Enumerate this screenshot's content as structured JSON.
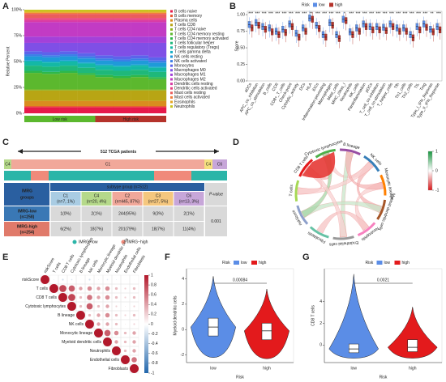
{
  "panel_labels": [
    "A",
    "B",
    "C",
    "D",
    "E",
    "F",
    "G"
  ],
  "chart_data": [
    {
      "type": "stacked_bar",
      "ylabel": "Relative Percent",
      "ylim": [
        0,
        100
      ],
      "yticks": [
        {
          "value": 0,
          "label": "0%"
        },
        {
          "value": 25,
          "label": "25%"
        },
        {
          "value": 50,
          "label": "50%"
        },
        {
          "value": 75,
          "label": "75%"
        },
        {
          "value": 100,
          "label": "100%"
        }
      ],
      "groups": [
        "Low risk",
        "High risk"
      ],
      "group_colors": [
        "#5cb82e",
        "#b5332b"
      ],
      "series": [
        {
          "name": "B cells naive",
          "color": "#e6194b",
          "values": [
            6,
            6,
            6,
            6,
            6,
            6,
            6,
            6
          ]
        },
        {
          "name": "B cells memory",
          "color": "#e8542f",
          "values": [
            1,
            1,
            1,
            1,
            1,
            1,
            1,
            1
          ]
        },
        {
          "name": "Plasma cells",
          "color": "#d98c1f",
          "values": [
            5,
            5,
            5,
            5,
            5,
            5,
            5,
            5
          ]
        },
        {
          "name": "T cells CD8",
          "color": "#b8a514",
          "values": [
            10,
            10,
            10,
            10,
            10,
            10,
            10,
            10
          ]
        },
        {
          "name": "T cells CD4 naive",
          "color": "#8fb31c",
          "values": [
            1,
            1,
            1,
            1,
            1,
            1,
            1,
            1
          ]
        },
        {
          "name": "T cells CD4 memory resting",
          "color": "#5cb82e",
          "values": [
            16,
            15,
            16,
            14,
            12,
            11,
            12,
            10
          ]
        },
        {
          "name": "T cells CD4 memory activated",
          "color": "#2eb84a",
          "values": [
            2,
            2,
            2,
            2,
            2,
            2,
            2,
            2
          ]
        },
        {
          "name": "T cells follicular helper",
          "color": "#1fb87a",
          "values": [
            5,
            5,
            5,
            5,
            5,
            5,
            5,
            5
          ]
        },
        {
          "name": "T cells regulatory (Tregs)",
          "color": "#14b8a5",
          "values": [
            4,
            4,
            4,
            4,
            4,
            4,
            4,
            4
          ]
        },
        {
          "name": "T cells gamma delta",
          "color": "#14aec4",
          "values": [
            1,
            1,
            1,
            1,
            1,
            1,
            1,
            1
          ]
        },
        {
          "name": "NK cells resting",
          "color": "#1f9ad9",
          "values": [
            4,
            4,
            4,
            4,
            4,
            4,
            4,
            4
          ]
        },
        {
          "name": "NK cells activated",
          "color": "#3b7fe6",
          "values": [
            2,
            2,
            2,
            2,
            2,
            2,
            2,
            2
          ]
        },
        {
          "name": "Monocytes",
          "color": "#5c63eb",
          "values": [
            3,
            3,
            3,
            3,
            3,
            3,
            3,
            3
          ]
        },
        {
          "name": "Macrophages M0",
          "color": "#7f4fe6",
          "values": [
            8,
            9,
            8,
            10,
            12,
            13,
            12,
            14
          ]
        },
        {
          "name": "Macrophages M1",
          "color": "#a341d9",
          "values": [
            6,
            6,
            6,
            6,
            6,
            6,
            6,
            6
          ]
        },
        {
          "name": "Macrophages M2",
          "color": "#c23bc4",
          "values": [
            14,
            14,
            14,
            14,
            14,
            14,
            14,
            14
          ]
        },
        {
          "name": "Dendritic cells resting",
          "color": "#d93ba5",
          "values": [
            2,
            2,
            2,
            2,
            2,
            2,
            2,
            2
          ]
        },
        {
          "name": "Dendritic cells activated",
          "color": "#e6417f",
          "values": [
            2,
            2,
            2,
            2,
            2,
            2,
            2,
            2
          ]
        },
        {
          "name": "Mast cells resting",
          "color": "#eb5c5c",
          "values": [
            4,
            4,
            4,
            4,
            4,
            4,
            4,
            4
          ]
        },
        {
          "name": "Mast cells activated",
          "color": "#f07c3b",
          "values": [
            1,
            1,
            1,
            1,
            1,
            1,
            1,
            1
          ]
        },
        {
          "name": "Eosinophils",
          "color": "#e6a31f",
          "values": [
            1,
            1,
            1,
            1,
            1,
            1,
            1,
            1
          ]
        },
        {
          "name": "Neutrophils",
          "color": "#c9c41f",
          "values": [
            2,
            2,
            2,
            2,
            2,
            2,
            2,
            2
          ]
        }
      ]
    },
    {
      "type": "box",
      "ylabel": "Score",
      "legend_title": "Risk",
      "ylim": [
        0,
        1.05
      ],
      "yticks": [
        {
          "value": 0,
          "label": "0.00"
        },
        {
          "value": 0.25,
          "label": "0.25"
        },
        {
          "value": 0.5,
          "label": "0.50"
        },
        {
          "value": 0.75,
          "label": "0.75"
        },
        {
          "value": 1,
          "label": "1.00"
        }
      ],
      "categories": [
        "aDCs",
        "APC_co_inhibition",
        "APC_co_stimulation",
        "B_cells",
        "CCR",
        "CD8+_T_cells",
        "Check-point",
        "Cytolytic_activity",
        "DCs",
        "HLA",
        "iDCs",
        "Inflammation-promoting",
        "Macrophages",
        "Mast_cells",
        "MHC_class_I",
        "Neutrophils",
        "NK_cells",
        "Parainflammation",
        "pDCs",
        "T_cell_co-inhibition",
        "T_cell_co-stimulation",
        "T_helper_cells",
        "Tfh",
        "Th1_cells",
        "Th2_cells",
        "TIL",
        "Treg",
        "Type_I_IFN_Reponse",
        "Type_II_IFN_Reponse"
      ],
      "significance": [
        "***",
        "***",
        "***",
        "***",
        "***",
        "***",
        "***",
        "***",
        "***",
        "**",
        "***",
        "***",
        "***",
        "***",
        "*",
        "***",
        "***",
        "***",
        "***",
        "***",
        "***",
        "***",
        "***",
        "***",
        "***",
        "***",
        "***",
        "**",
        "***"
      ],
      "series": [
        {
          "name": "low",
          "color": "#5b8de6",
          "values": [
            0.85,
            0.88,
            0.82,
            0.8,
            0.75,
            0.78,
            0.86,
            0.72,
            0.8,
            0.95,
            0.84,
            0.7,
            0.88,
            0.7,
            0.93,
            0.74,
            0.8,
            0.86,
            0.82,
            0.82,
            0.81,
            0.86,
            0.8,
            0.8,
            0.7,
            0.82,
            0.86,
            0.78,
            0.82
          ]
        },
        {
          "name": "high",
          "color": "#b5332b",
          "values": [
            0.8,
            0.84,
            0.78,
            0.74,
            0.7,
            0.73,
            0.82,
            0.66,
            0.75,
            0.93,
            0.79,
            0.66,
            0.84,
            0.64,
            0.91,
            0.7,
            0.75,
            0.82,
            0.77,
            0.77,
            0.76,
            0.82,
            0.75,
            0.75,
            0.65,
            0.77,
            0.81,
            0.74,
            0.77
          ]
        }
      ]
    },
    {
      "type": "chord",
      "labels": [
        "CD8 T cells",
        "Cytotoxic lymphocytes",
        "B lineage",
        "NK cells",
        "Monocytic lineage",
        "Myeloid dendritic cells",
        "Neutrophils",
        "Endothelial cells",
        "Fibroblasts",
        "riskScore",
        "T cells"
      ],
      "colors": [
        "#e41a1c",
        "#4daf4a",
        "#984ea3",
        "#377eb8",
        "#ff7f00",
        "#a65628",
        "#f781bf",
        "#999999",
        "#66c2a5",
        "#8da0cb",
        "#a6d854"
      ],
      "ylim": [
        -1,
        1
      ],
      "yticks": [
        1,
        0,
        -1
      ]
    },
    {
      "type": "corrplot",
      "labels": [
        "riskScore",
        "T cells",
        "CD8 T cells",
        "Cytotoxic lymphocytes",
        "B lineage",
        "NK cells",
        "Monocytic lineage",
        "Myeloid dendritic cells",
        "Neutrophils",
        "Endothelial cells",
        "Fibroblasts"
      ],
      "matrix": [
        [
          1,
          -0.1,
          -0.2,
          -0.15,
          -0.05,
          -0.2,
          -0.1,
          -0.15,
          -0.1,
          -0.05,
          0.05
        ],
        [
          1,
          0.8,
          0.7,
          0.4,
          0.5,
          0.4,
          0.5,
          0.3,
          0.2,
          0.3
        ],
        [
          1,
          0.8,
          0.3,
          0.6,
          0.4,
          0.5,
          0.3,
          0.2,
          0.3
        ],
        [
          1,
          0.3,
          0.7,
          0.3,
          0.4,
          0.2,
          0.1,
          0.2
        ],
        [
          1,
          0.3,
          0.4,
          0.5,
          0.3,
          0.2,
          0.3
        ],
        [
          1,
          0.4,
          0.4,
          0.3,
          0.1,
          0.2
        ],
        [
          1,
          0.7,
          0.5,
          0.3,
          0.4
        ],
        [
          1,
          0.4,
          0.3,
          0.4
        ],
        [
          1,
          0.3,
          0.4
        ],
        [
          1,
          0.6
        ],
        [
          1
        ]
      ],
      "ylim": [
        -1,
        1
      ],
      "yticks": [
        1,
        0.8,
        0.6,
        0.4,
        0.2,
        0,
        -0.2,
        -0.4,
        -0.6,
        -0.8,
        -1
      ]
    },
    {
      "type": "violin",
      "ylabel": "Myeloid dendritic cells",
      "xlabel": "Risk",
      "legend_title": "Risk",
      "pvalue": "0.00084",
      "ylim": [
        -2.6,
        4.8
      ],
      "yticks": [
        -2,
        0,
        2,
        4
      ],
      "series": [
        {
          "name": "low",
          "color": "#5b8de6",
          "min": -2.2,
          "q1": -0.5,
          "median": 0.2,
          "q3": 0.9,
          "max": 4.2
        },
        {
          "name": "high",
          "color": "#e31a1c",
          "min": -2.3,
          "q1": -0.8,
          "median": -0.1,
          "q3": 0.5,
          "max": 3.2
        }
      ]
    },
    {
      "type": "violin",
      "ylabel": "CD8 T cells",
      "xlabel": "Risk",
      "legend_title": "Risk",
      "pvalue": "0.0021",
      "ylim": [
        -1.6,
        7
      ],
      "yticks": [
        0,
        2,
        4
      ],
      "series": [
        {
          "name": "low",
          "color": "#5b8de6",
          "min": -1.2,
          "q1": -0.7,
          "median": -0.35,
          "q3": 0.1,
          "max": 6.5
        },
        {
          "name": "high",
          "color": "#e31a1c",
          "min": -1.2,
          "q1": -0.6,
          "median": -0.2,
          "q3": 0.5,
          "max": 3.5
        }
      ]
    }
  ],
  "table": {
    "title": "512 TCGA patients",
    "strip_labels": [
      "C4",
      "C1",
      "C4",
      "C6"
    ],
    "group_header": [
      "IMRG",
      "groups"
    ],
    "subtype_header": "subtype group (n=512)",
    "p_header": "P-value",
    "subtypes": [
      {
        "name": "C1",
        "n": "(n=7, 1%)",
        "color": "#a9cce3"
      },
      {
        "name": "C4",
        "n": "(n=20, 4%)",
        "color": "#b5d98a"
      },
      {
        "name": "C2",
        "n": "(n=445, 87%)",
        "color": "#f1a89a"
      },
      {
        "name": "C3",
        "n": "(n=27, 5%)",
        "color": "#f5c77e"
      },
      {
        "name": "C6",
        "n": "(n=13, 3%)",
        "color": "#c7a6d9"
      }
    ],
    "rows": [
      {
        "label": "IMRG-low",
        "n": "(n=258)",
        "color": "#3a78b5",
        "cells": [
          "1(0%)",
          "2(1%)",
          "244(95%)",
          "9(3%)",
          "2(1%)"
        ]
      },
      {
        "label": "IMRG-high",
        "n": "(n=254)",
        "color": "#e07a6a",
        "cells": [
          "6(2%)",
          "18(7%)",
          "201(79%)",
          "18(7%)",
          "11(4%)"
        ]
      }
    ],
    "pvalue": "0.001",
    "legend": [
      {
        "name": "IMRG−low",
        "color": "#2bb5a8"
      },
      {
        "name": "IMRG−high",
        "color": "#f08a7a"
      }
    ]
  }
}
